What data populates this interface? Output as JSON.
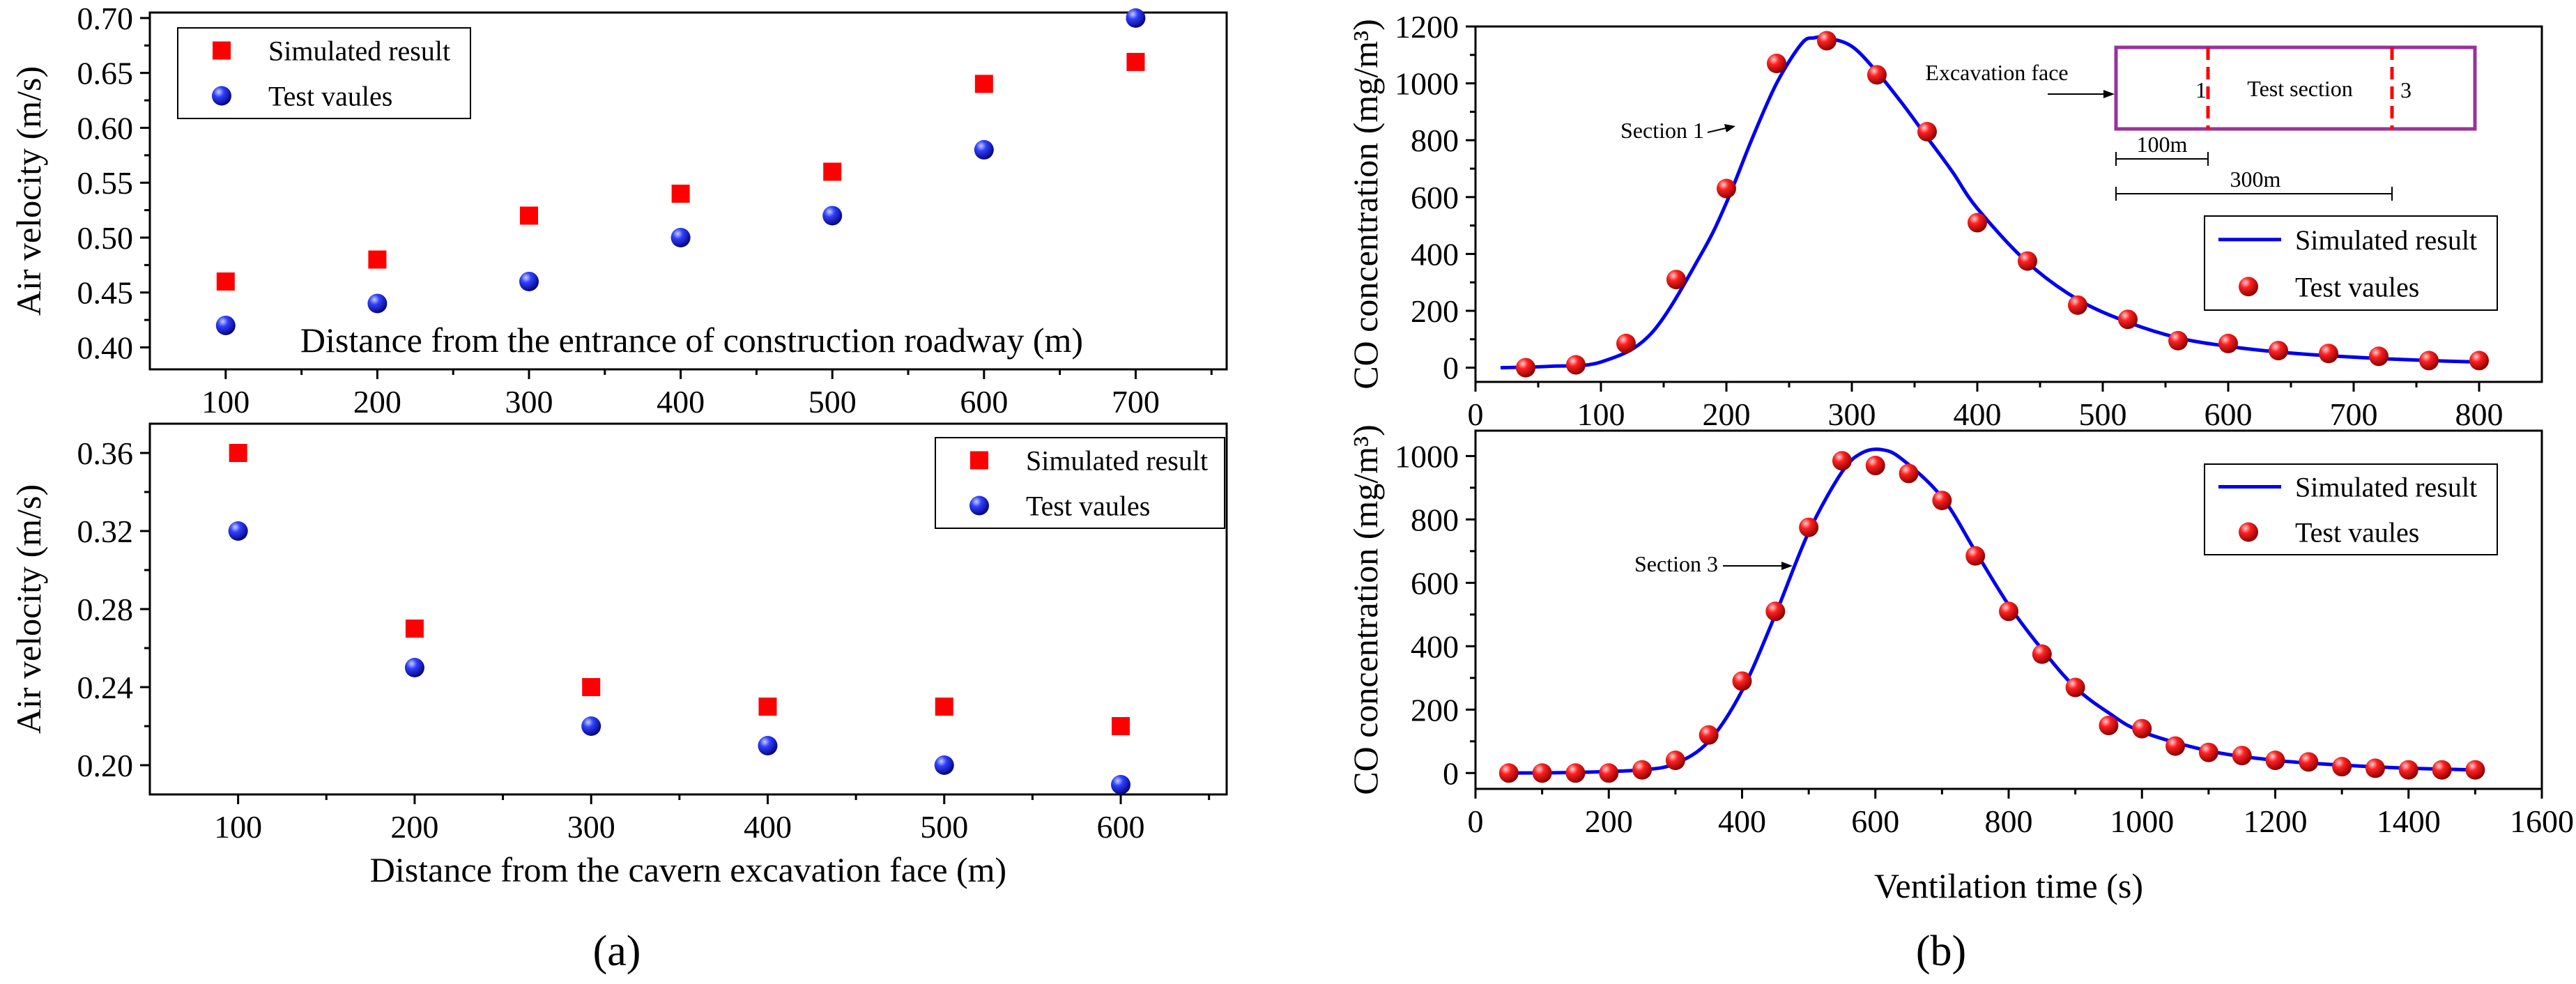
{
  "chart_data": [
    {
      "id": "a_top",
      "type": "scatter",
      "xlabel": "Distance from the entrance of construction roadway (m)",
      "ylabel": "Air velocity (m/s)",
      "xlim": [
        50,
        760
      ],
      "ylim": [
        0.38,
        0.705
      ],
      "xticks": [
        100,
        200,
        300,
        400,
        500,
        600,
        700
      ],
      "yticks": [
        0.4,
        0.45,
        0.5,
        0.55,
        0.6,
        0.65,
        0.7
      ],
      "xtick_labels": [
        "100",
        "200",
        "300",
        "400",
        "500",
        "600",
        "700"
      ],
      "ytick_labels": [
        "0.40",
        "0.45",
        "0.50",
        "0.55",
        "0.60",
        "0.65",
        "0.70"
      ],
      "legend": {
        "position": "top-left",
        "entries": [
          "Simulated result",
          "Test vaules"
        ]
      },
      "series": [
        {
          "name": "Simulated result",
          "marker": "square",
          "color": "#ff0000",
          "x": [
            100,
            200,
            300,
            400,
            500,
            600,
            700
          ],
          "y": [
            0.46,
            0.48,
            0.52,
            0.54,
            0.56,
            0.64,
            0.66
          ]
        },
        {
          "name": "Test vaules",
          "marker": "sphere",
          "color": "#1414e6",
          "x": [
            100,
            200,
            300,
            400,
            500,
            600,
            700
          ],
          "y": [
            0.42,
            0.44,
            0.46,
            0.5,
            0.52,
            0.58,
            0.7
          ]
        }
      ]
    },
    {
      "id": "a_bottom",
      "type": "scatter",
      "xlabel": "Distance from the cavern excavation face (m)",
      "ylabel": "Air velocity (m/s)",
      "xlim": [
        50,
        660
      ],
      "ylim": [
        0.185,
        0.375
      ],
      "xticks": [
        100,
        200,
        300,
        400,
        500,
        600
      ],
      "yticks": [
        0.2,
        0.24,
        0.28,
        0.32,
        0.36
      ],
      "xtick_labels": [
        "100",
        "200",
        "300",
        "400",
        "500",
        "600"
      ],
      "ytick_labels": [
        "0.20",
        "0.24",
        "0.28",
        "0.32",
        "0.36"
      ],
      "legend": {
        "position": "top-right",
        "entries": [
          "Simulated result",
          "Test vaules"
        ]
      },
      "series": [
        {
          "name": "Simulated result",
          "marker": "square",
          "color": "#ff0000",
          "x": [
            100,
            200,
            300,
            400,
            500,
            600
          ],
          "y": [
            0.36,
            0.27,
            0.24,
            0.23,
            0.23,
            0.22
          ]
        },
        {
          "name": "Test vaules",
          "marker": "sphere",
          "color": "#1414e6",
          "x": [
            100,
            200,
            300,
            400,
            500,
            600
          ],
          "y": [
            0.32,
            0.25,
            0.22,
            0.21,
            0.2,
            0.19
          ]
        }
      ]
    },
    {
      "id": "b_top",
      "type": "line",
      "xlabel": "",
      "ylabel": "CO  concentration (mg/m³)",
      "xlim": [
        0,
        850
      ],
      "ylim": [
        -50,
        1200
      ],
      "xticks": [
        0,
        100,
        200,
        300,
        400,
        500,
        600,
        700,
        800
      ],
      "yticks": [
        0,
        200,
        400,
        600,
        800,
        1000,
        1200
      ],
      "xtick_labels": [
        "0",
        "100",
        "200",
        "300",
        "400",
        "500",
        "600",
        "700",
        "800"
      ],
      "ytick_labels": [
        "0",
        "200",
        "400",
        "600",
        "800",
        "1000",
        "1200"
      ],
      "legend": {
        "position": "right",
        "entries": [
          "Simulated result",
          "Test vaules"
        ]
      },
      "annotation": "Section 1",
      "inset": {
        "label_left": "Excavation face",
        "label_mid": "Test section",
        "label_1": "1",
        "label_3": "3",
        "dim_1": "100m",
        "dim_3": "300m"
      },
      "series": [
        {
          "name": "Simulated result",
          "style": "line",
          "color": "#0000ee",
          "x": [
            20,
            60,
            100,
            140,
            180,
            200,
            220,
            240,
            260,
            270,
            280,
            300,
            320,
            340,
            360,
            380,
            400,
            440,
            480,
            520,
            560,
            600,
            640,
            680,
            720,
            760,
            800
          ],
          "y": [
            0,
            5,
            20,
            120,
            400,
            580,
            800,
            1000,
            1140,
            1160,
            1160,
            1130,
            1040,
            930,
            810,
            690,
            560,
            370,
            240,
            160,
            105,
            75,
            55,
            42,
            32,
            25,
            20
          ]
        },
        {
          "name": "Test vaules",
          "style": "sphere",
          "color": "#ff2020",
          "x": [
            40,
            80,
            120,
            160,
            200,
            240,
            280,
            320,
            360,
            400,
            440,
            480,
            520,
            560,
            600,
            640,
            680,
            720,
            760,
            800
          ],
          "y": [
            0,
            10,
            85,
            310,
            630,
            1070,
            1150,
            1030,
            830,
            510,
            375,
            220,
            170,
            95,
            85,
            60,
            50,
            40,
            25,
            25
          ]
        }
      ]
    },
    {
      "id": "b_bottom",
      "type": "line",
      "xlabel": "Ventilation time (s)",
      "ylabel": "CO  concentration (mg/m³)",
      "xlim": [
        0,
        1600
      ],
      "ylim": [
        -50,
        1080
      ],
      "xticks": [
        0,
        200,
        400,
        600,
        800,
        1000,
        1200,
        1400,
        1600
      ],
      "yticks": [
        0,
        200,
        400,
        600,
        800,
        1000
      ],
      "xtick_labels": [
        "0",
        "200",
        "400",
        "600",
        "800",
        "1000",
        "1200",
        "1400",
        "1600"
      ],
      "ytick_labels": [
        "0",
        "200",
        "400",
        "600",
        "800",
        "1000"
      ],
      "legend": {
        "position": "top-right",
        "entries": [
          "Simulated result",
          "Test vaules"
        ]
      },
      "annotation": "Section 3",
      "series": [
        {
          "name": "Simulated result",
          "style": "line",
          "color": "#0000ee",
          "x": [
            50,
            150,
            250,
            300,
            350,
            400,
            450,
            500,
            550,
            580,
            610,
            640,
            700,
            750,
            800,
            850,
            900,
            950,
            1000,
            1100,
            1200,
            1300,
            1400,
            1500
          ],
          "y": [
            0,
            2,
            10,
            30,
            100,
            260,
            500,
            760,
            950,
            1010,
            1020,
            990,
            870,
            700,
            530,
            390,
            270,
            190,
            130,
            70,
            40,
            25,
            15,
            10
          ]
        },
        {
          "name": "Test vaules",
          "style": "sphere",
          "color": "#ff2020",
          "x": [
            50,
            100,
            150,
            200,
            250,
            300,
            350,
            400,
            450,
            500,
            550,
            600,
            650,
            700,
            750,
            800,
            850,
            900,
            950,
            1000,
            1050,
            1100,
            1150,
            1200,
            1250,
            1300,
            1350,
            1400,
            1450,
            1500
          ],
          "y": [
            0,
            0,
            0,
            0,
            10,
            40,
            120,
            290,
            510,
            775,
            985,
            970,
            945,
            860,
            685,
            510,
            375,
            270,
            150,
            140,
            85,
            65,
            55,
            40,
            35,
            20,
            15,
            10,
            10,
            10
          ]
        }
      ]
    }
  ],
  "panel_labels": {
    "a": "(a)",
    "b": "(b)"
  },
  "colors": {
    "square": "#ff0000",
    "sphere_blue": "#1414e6",
    "sphere_red": "#ff2020",
    "line": "#0000ee",
    "inset": "#993399",
    "dash": "#ff0000"
  }
}
